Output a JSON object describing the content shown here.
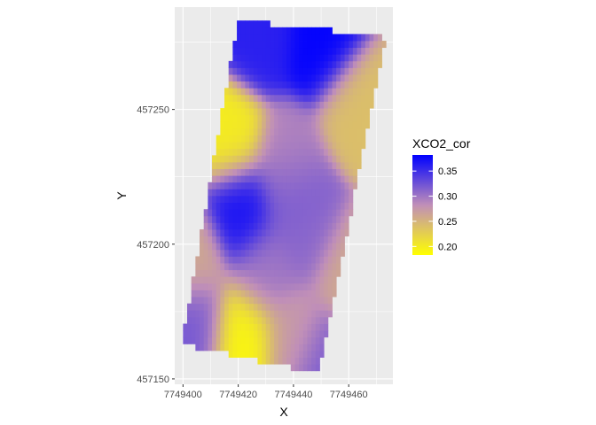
{
  "chart_data": {
    "type": "heatmap",
    "title": "",
    "xlabel": "X",
    "ylabel": "Y",
    "xlim": [
      7749397,
      7749476
    ],
    "ylim": [
      457148,
      457288
    ],
    "x_ticks": [
      {
        "value": 7749400,
        "label": "7749400"
      },
      {
        "value": 7749420,
        "label": "7749420"
      },
      {
        "value": 7749440,
        "label": "7749440"
      },
      {
        "value": 7749460,
        "label": "7749460"
      }
    ],
    "y_ticks": [
      {
        "value": 457150,
        "label": "457150"
      },
      {
        "value": 457200,
        "label": "457200"
      },
      {
        "value": 457250,
        "label": "457250"
      }
    ],
    "grid": true,
    "panel_background": "#ebebeb",
    "grid_color": "#ffffff",
    "field_outline": [
      [
        7749420.0,
        457283.0
      ],
      [
        7749448.0,
        457280.0
      ],
      [
        7749473.5,
        457276.5
      ],
      [
        7749449.0,
        457152.0
      ],
      [
        7749399.5,
        457163.0
      ]
    ],
    "hotspots": [
      {
        "x": 7749422,
        "y": 457166,
        "value": 0.19
      },
      {
        "x": 7749417,
        "y": 457240,
        "value": 0.2
      },
      {
        "x": 7749462,
        "y": 457251,
        "value": 0.24
      },
      {
        "x": 7749460,
        "y": 457190,
        "value": 0.26
      },
      {
        "x": 7749403,
        "y": 457195,
        "value": 0.26
      },
      {
        "x": 7749440,
        "y": 457165,
        "value": 0.27
      },
      {
        "x": 7749438,
        "y": 457232,
        "value": 0.29
      },
      {
        "x": 7749421,
        "y": 457213,
        "value": 0.37
      },
      {
        "x": 7749450,
        "y": 457273,
        "value": 0.38
      },
      {
        "x": 7749428,
        "y": 457276,
        "value": 0.36
      },
      {
        "x": 7749440,
        "y": 457218,
        "value": 0.32
      },
      {
        "x": 7749404,
        "y": 457170,
        "value": 0.32
      },
      {
        "x": 7749450,
        "y": 457156,
        "value": 0.32
      },
      {
        "x": 7749445,
        "y": 457205,
        "value": 0.31
      },
      {
        "x": 7749430,
        "y": 457190,
        "value": 0.3
      }
    ],
    "legend": {
      "title": "XCO2_cor",
      "position": "right",
      "range": [
        0.183,
        0.382
      ],
      "breaks": [
        {
          "value": 0.35,
          "label": "0.35"
        },
        {
          "value": 0.3,
          "label": "0.30"
        },
        {
          "value": 0.25,
          "label": "0.25"
        },
        {
          "value": 0.2,
          "label": "0.20"
        }
      ],
      "colors": {
        "low": "#ffff00",
        "mid": "#c08fb8",
        "high": "#0000ff"
      }
    }
  }
}
